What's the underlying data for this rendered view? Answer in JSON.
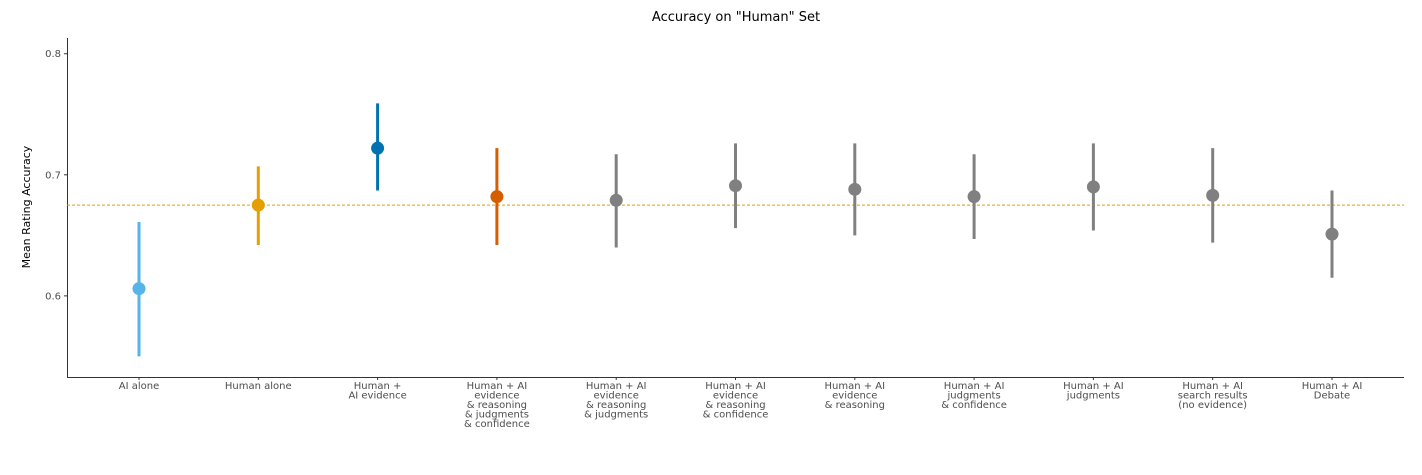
{
  "chart_data": {
    "type": "pointrange",
    "title": "Accuracy on \"Human\" Set",
    "xlabel": "",
    "ylabel": "Mean Rating Accuracy",
    "ylim": [
      0.533,
      0.813
    ],
    "yticks": [
      0.6,
      0.7,
      0.8
    ],
    "ytick_labels": [
      "0.6",
      "0.7",
      "0.8"
    ],
    "grid": false,
    "reference_line": {
      "y": 0.675,
      "style": "dashed",
      "color": "#E69F00"
    },
    "categories": [
      "AI alone",
      "Human alone",
      "Human +\nAI evidence",
      "Human + AI\nevidence\n& reasoning\n& judgments\n& confidence",
      "Human + AI\nevidence\n& reasoning\n& judgments",
      "Human + AI\nevidence\n& reasoning\n& confidence",
      "Human + AI\nevidence\n& reasoning",
      "Human + AI\njudgments\n& confidence",
      "Human + AI\njudgments",
      "Human + AI\nsearch results\n(no evidence)",
      "Human + AI\nDebate"
    ],
    "values": [
      0.606,
      0.675,
      0.722,
      0.682,
      0.679,
      0.691,
      0.688,
      0.682,
      0.69,
      0.683,
      0.651
    ],
    "lower": [
      0.55,
      0.642,
      0.687,
      0.642,
      0.64,
      0.656,
      0.65,
      0.647,
      0.654,
      0.644,
      0.615
    ],
    "upper": [
      0.661,
      0.707,
      0.759,
      0.722,
      0.717,
      0.726,
      0.726,
      0.717,
      0.726,
      0.722,
      0.687
    ],
    "colors": [
      "#56B4E9",
      "#E69F00",
      "#0072B2",
      "#D55E00",
      "#808080",
      "#808080",
      "#808080",
      "#808080",
      "#808080",
      "#808080",
      "#808080"
    ]
  }
}
